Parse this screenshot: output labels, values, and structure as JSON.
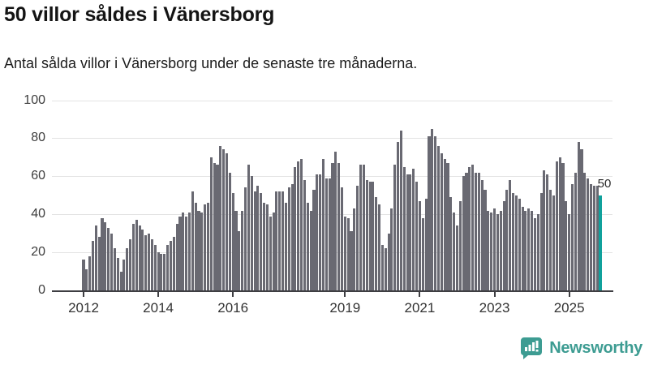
{
  "header": {
    "title": "50 villor såldes i Vänersborg",
    "subtitle": "Antal sålda villor i Vänersborg under de senaste tre månaderna."
  },
  "chart_data": {
    "type": "bar",
    "title": "50 villor såldes i Vänersborg",
    "subtitle": "Antal sålda villor i Vänersborg under de senaste tre månaderna.",
    "xlabel": "",
    "ylabel": "",
    "x_start_month": "2012-01",
    "x_end_month": "2025-11",
    "values": [
      16,
      11,
      18,
      26,
      34,
      28,
      38,
      36,
      33,
      30,
      22,
      17,
      10,
      16,
      22,
      27,
      35,
      37,
      34,
      32,
      29,
      30,
      27,
      24,
      20,
      19,
      19,
      24,
      26,
      28,
      35,
      39,
      41,
      39,
      41,
      52,
      46,
      42,
      41,
      45,
      46,
      70,
      67,
      66,
      76,
      74,
      72,
      62,
      51,
      42,
      31,
      42,
      54,
      66,
      60,
      52,
      55,
      51,
      46,
      45,
      39,
      41,
      52,
      52,
      52,
      46,
      54,
      56,
      65,
      68,
      69,
      58,
      46,
      42,
      53,
      61,
      61,
      69,
      59,
      59,
      67,
      73,
      67,
      54,
      39,
      38,
      31,
      43,
      55,
      66,
      66,
      58,
      57,
      57,
      49,
      45,
      24,
      22,
      30,
      43,
      66,
      78,
      84,
      65,
      61,
      61,
      64,
      57,
      47,
      38,
      48,
      81,
      85,
      81,
      76,
      72,
      69,
      67,
      49,
      41,
      34,
      47,
      60,
      62,
      65,
      66,
      62,
      62,
      58,
      53,
      42,
      41,
      43,
      40,
      42,
      47,
      53,
      58,
      51,
      50,
      48,
      44,
      42,
      43,
      42,
      38,
      40,
      51,
      63,
      61,
      53,
      50,
      68,
      70,
      67,
      47,
      40,
      56,
      62,
      78,
      74,
      62,
      59,
      56,
      55,
      55,
      50
    ],
    "ylim": [
      0,
      100
    ],
    "y_ticks": [
      0,
      20,
      40,
      60,
      80,
      100
    ],
    "x_tick_labels": [
      "2012",
      "2014",
      "2016",
      "2019",
      "2021",
      "2023",
      "2025"
    ],
    "x_tick_month_index": [
      0,
      24,
      48,
      84,
      108,
      132,
      156
    ],
    "grid": "horizontal",
    "legend": "none",
    "highlight": {
      "index": 166,
      "value": 50,
      "label": "50"
    }
  },
  "footer": {
    "brand": "Newsworthy"
  },
  "colors": {
    "bar": "#696972",
    "highlight_teal": "#10a19c",
    "brand_teal": "#3d9c92",
    "grid": "#e3e3e3",
    "axis": "#3e3e42",
    "text_dark": "#141414"
  }
}
